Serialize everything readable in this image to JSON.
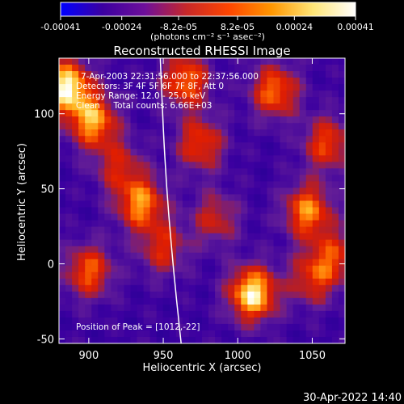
{
  "chart_data": {
    "type": "heatmap",
    "title": "Reconstructed RHESSI Image",
    "xlabel": "Heliocentric X (arcsec)",
    "ylabel": "Heliocentric Y (arcsec)",
    "xlim": [
      880,
      1072
    ],
    "ylim": [
      -53,
      137
    ],
    "x_ticks": [
      "900",
      "950",
      "1000",
      "1050"
    ],
    "x_tick_values": [
      900,
      950,
      1000,
      1050
    ],
    "y_ticks": [
      "-50",
      "0",
      "50",
      "100"
    ],
    "y_tick_values": [
      -50,
      0,
      50,
      100
    ],
    "colorbar": {
      "tick_labels": [
        "-0.00041",
        "-0.00024",
        "-8.2e-05",
        "8.2e-05",
        "0.00024",
        "0.00041"
      ],
      "tick_values": [
        -0.00041,
        -0.00024,
        -8.2e-05,
        8.2e-05,
        0.00024,
        0.00041
      ],
      "range": [
        -0.00041,
        0.00041
      ],
      "unit_label": "(photons cm⁻² s⁻¹ asec⁻²)",
      "colormap": [
        "#0000ff",
        "#3c00a0",
        "#6e0f9a",
        "#c82828",
        "#ff4600",
        "#ff9600",
        "#ffe678",
        "#ffffff"
      ]
    },
    "annotations": [
      "7-Apr-2003 22:31:56.000 to 22:37:56.000",
      "Detectors: 3F 4F 5F 6F 7F 8F, Att 0",
      "Energy Range: 12.0 - 25.0 keV",
      "Clean     Total counts: 6.66E+03",
      "Position of Peak = [1012,-22]"
    ],
    "limb_line_color": "#ffffff",
    "grid": false,
    "peak": {
      "x": 1012,
      "y": -22
    },
    "hot_spots": [
      {
        "x": 885,
        "y": 118,
        "w": 1.0
      },
      {
        "x": 903,
        "y": 95,
        "w": 0.8
      },
      {
        "x": 935,
        "y": 40,
        "w": 0.75
      },
      {
        "x": 965,
        "y": 122,
        "w": 0.7
      },
      {
        "x": 900,
        "y": -5,
        "w": 0.65
      },
      {
        "x": 975,
        "y": 80,
        "w": 0.6
      },
      {
        "x": 1010,
        "y": -20,
        "w": 1.0
      },
      {
        "x": 1025,
        "y": 115,
        "w": 0.7
      },
      {
        "x": 1047,
        "y": 35,
        "w": 0.75
      },
      {
        "x": 1060,
        "y": 80,
        "w": 0.6
      },
      {
        "x": 950,
        "y": 10,
        "w": 0.5
      },
      {
        "x": 985,
        "y": 30,
        "w": 0.45
      },
      {
        "x": 1050,
        "y": -10,
        "w": 0.5
      },
      {
        "x": 1065,
        "y": 5,
        "w": 0.5
      },
      {
        "x": 920,
        "y": 65,
        "w": 0.45
      }
    ]
  },
  "footer": {
    "timestamp": "30-Apr-2022 14:40"
  }
}
